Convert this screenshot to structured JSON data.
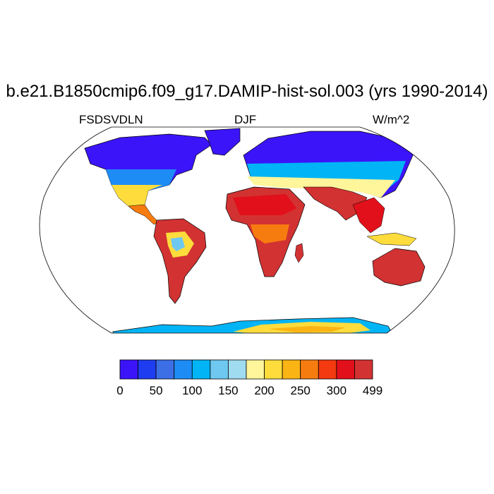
{
  "title": "b.e21.B1850cmip6.f09_g17.DAMIP-hist-sol.003 (yrs 1990-2014)",
  "subtitle_left": "FSDSVDLN",
  "subtitle_center": "DJF",
  "subtitle_right": "W/m^2",
  "map": {
    "projection": "Robinson",
    "description_colors": {
      "ocean": "#ffffff",
      "outline": "#000000"
    }
  },
  "colorbar": {
    "colors": [
      "#3c14fa",
      "#1e3cf0",
      "#3c6ee6",
      "#1e8cf5",
      "#00b4f5",
      "#6ec8f0",
      "#a0dcf0",
      "#fff59a",
      "#fddc3c",
      "#fab414",
      "#f77c10",
      "#f33a10",
      "#e1101a",
      "#d23232"
    ],
    "tick_labels": [
      "0",
      "50",
      "100",
      "150",
      "200",
      "250",
      "300",
      "499"
    ]
  }
}
